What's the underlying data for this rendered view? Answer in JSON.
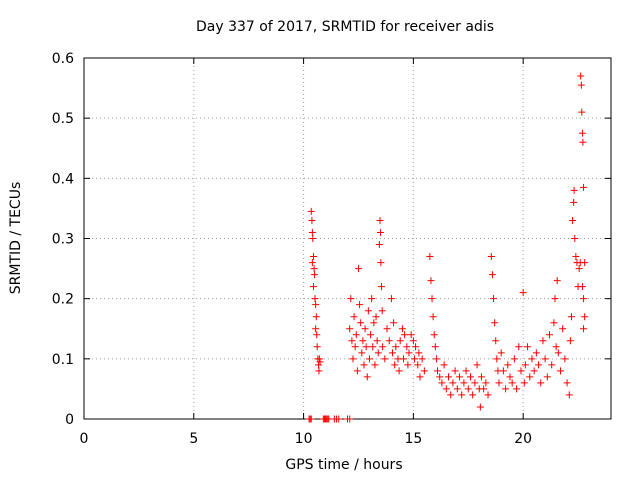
{
  "chart_data": {
    "type": "scatter",
    "title": "Day 337 of 2017, SRMTID for receiver adis",
    "xlabel": "GPS time / hours",
    "ylabel": "SRMTID / TECUs",
    "xlim": [
      0,
      24
    ],
    "ylim": [
      0,
      0.6
    ],
    "xticks": [
      0,
      5,
      10,
      15,
      20
    ],
    "xtick_labels": [
      "0",
      "5",
      "10",
      "15",
      "20"
    ],
    "yticks": [
      0,
      0.1,
      0.2,
      0.3,
      0.4,
      0.5,
      0.6
    ],
    "ytick_labels": [
      "0",
      "0.1",
      "0.2",
      "0.3",
      "0.4",
      "0.5",
      "0.6"
    ],
    "grid": true,
    "marker": "+",
    "color": "#ff0000",
    "series": [
      {
        "name": "SRMTID",
        "points": [
          [
            10.25,
            0.0
          ],
          [
            10.3,
            0.0
          ],
          [
            10.35,
            0.0
          ],
          [
            10.9,
            0.0
          ],
          [
            10.95,
            0.0
          ],
          [
            11.0,
            0.0
          ],
          [
            11.05,
            0.0
          ],
          [
            11.1,
            0.0
          ],
          [
            11.15,
            0.0
          ],
          [
            11.4,
            0.0
          ],
          [
            11.5,
            0.0
          ],
          [
            11.6,
            0.0
          ],
          [
            12.0,
            0.0
          ],
          [
            12.1,
            0.0
          ],
          [
            10.35,
            0.345
          ],
          [
            10.38,
            0.33
          ],
          [
            10.4,
            0.31
          ],
          [
            10.42,
            0.3
          ],
          [
            10.45,
            0.27
          ],
          [
            10.48,
            0.25
          ],
          [
            10.5,
            0.24
          ],
          [
            10.52,
            0.2
          ],
          [
            10.55,
            0.19
          ],
          [
            10.58,
            0.17
          ],
          [
            10.6,
            0.14
          ],
          [
            10.62,
            0.12
          ],
          [
            10.65,
            0.1
          ],
          [
            10.68,
            0.09
          ],
          [
            10.7,
            0.08
          ],
          [
            10.72,
            0.1
          ],
          [
            10.75,
            0.095
          ],
          [
            10.4,
            0.26
          ],
          [
            10.45,
            0.22
          ],
          [
            10.55,
            0.15
          ],
          [
            12.1,
            0.15
          ],
          [
            12.15,
            0.2
          ],
          [
            12.2,
            0.13
          ],
          [
            12.25,
            0.1
          ],
          [
            12.3,
            0.17
          ],
          [
            12.35,
            0.12
          ],
          [
            12.4,
            0.14
          ],
          [
            12.45,
            0.08
          ],
          [
            12.5,
            0.25
          ],
          [
            12.55,
            0.19
          ],
          [
            12.6,
            0.16
          ],
          [
            12.65,
            0.11
          ],
          [
            12.7,
            0.13
          ],
          [
            12.75,
            0.09
          ],
          [
            12.8,
            0.15
          ],
          [
            12.85,
            0.12
          ],
          [
            12.9,
            0.07
          ],
          [
            12.95,
            0.18
          ],
          [
            13.0,
            0.1
          ],
          [
            13.05,
            0.14
          ],
          [
            13.1,
            0.2
          ],
          [
            13.15,
            0.12
          ],
          [
            13.2,
            0.16
          ],
          [
            13.25,
            0.09
          ],
          [
            13.3,
            0.17
          ],
          [
            13.35,
            0.13
          ],
          [
            13.4,
            0.11
          ],
          [
            13.45,
            0.29
          ],
          [
            13.48,
            0.33
          ],
          [
            13.5,
            0.31
          ],
          [
            13.52,
            0.26
          ],
          [
            13.55,
            0.22
          ],
          [
            13.58,
            0.18
          ],
          [
            13.6,
            0.12
          ],
          [
            13.7,
            0.1
          ],
          [
            13.8,
            0.15
          ],
          [
            13.9,
            0.13
          ],
          [
            14.0,
            0.2
          ],
          [
            14.05,
            0.11
          ],
          [
            14.1,
            0.16
          ],
          [
            14.15,
            0.09
          ],
          [
            14.2,
            0.12
          ],
          [
            14.3,
            0.1
          ],
          [
            14.35,
            0.08
          ],
          [
            14.4,
            0.13
          ],
          [
            14.5,
            0.15
          ],
          [
            14.55,
            0.1
          ],
          [
            14.6,
            0.14
          ],
          [
            14.7,
            0.12
          ],
          [
            14.75,
            0.09
          ],
          [
            14.8,
            0.11
          ],
          [
            14.9,
            0.14
          ],
          [
            15.0,
            0.13
          ],
          [
            15.05,
            0.1
          ],
          [
            15.1,
            0.12
          ],
          [
            15.2,
            0.09
          ],
          [
            15.25,
            0.11
          ],
          [
            15.3,
            0.07
          ],
          [
            15.4,
            0.1
          ],
          [
            15.5,
            0.08
          ],
          [
            15.75,
            0.27
          ],
          [
            15.8,
            0.23
          ],
          [
            15.85,
            0.2
          ],
          [
            15.9,
            0.17
          ],
          [
            15.95,
            0.14
          ],
          [
            16.0,
            0.12
          ],
          [
            16.05,
            0.1
          ],
          [
            16.1,
            0.08
          ],
          [
            16.2,
            0.07
          ],
          [
            16.3,
            0.06
          ],
          [
            16.4,
            0.09
          ],
          [
            16.5,
            0.05
          ],
          [
            16.6,
            0.07
          ],
          [
            16.7,
            0.04
          ],
          [
            16.8,
            0.06
          ],
          [
            16.9,
            0.08
          ],
          [
            17.0,
            0.05
          ],
          [
            17.1,
            0.07
          ],
          [
            17.2,
            0.04
          ],
          [
            17.3,
            0.06
          ],
          [
            17.4,
            0.08
          ],
          [
            17.5,
            0.05
          ],
          [
            17.6,
            0.07
          ],
          [
            17.7,
            0.04
          ],
          [
            17.8,
            0.06
          ],
          [
            17.9,
            0.09
          ],
          [
            18.0,
            0.05
          ],
          [
            18.05,
            0.02
          ],
          [
            18.1,
            0.07
          ],
          [
            18.2,
            0.05
          ],
          [
            18.3,
            0.06
          ],
          [
            18.4,
            0.04
          ],
          [
            18.55,
            0.27
          ],
          [
            18.6,
            0.24
          ],
          [
            18.65,
            0.2
          ],
          [
            18.7,
            0.16
          ],
          [
            18.75,
            0.13
          ],
          [
            18.8,
            0.1
          ],
          [
            18.85,
            0.08
          ],
          [
            18.9,
            0.06
          ],
          [
            19.0,
            0.11
          ],
          [
            19.1,
            0.08
          ],
          [
            19.2,
            0.05
          ],
          [
            19.3,
            0.09
          ],
          [
            19.4,
            0.07
          ],
          [
            19.5,
            0.06
          ],
          [
            19.6,
            0.1
          ],
          [
            19.7,
            0.05
          ],
          [
            19.8,
            0.12
          ],
          [
            19.9,
            0.08
          ],
          [
            20.0,
            0.21
          ],
          [
            20.05,
            0.06
          ],
          [
            20.1,
            0.09
          ],
          [
            20.2,
            0.12
          ],
          [
            20.3,
            0.07
          ],
          [
            20.4,
            0.1
          ],
          [
            20.5,
            0.08
          ],
          [
            20.6,
            0.11
          ],
          [
            20.7,
            0.09
          ],
          [
            20.8,
            0.06
          ],
          [
            20.9,
            0.13
          ],
          [
            21.0,
            0.1
          ],
          [
            21.1,
            0.07
          ],
          [
            21.2,
            0.14
          ],
          [
            21.3,
            0.09
          ],
          [
            21.4,
            0.16
          ],
          [
            21.45,
            0.2
          ],
          [
            21.5,
            0.12
          ],
          [
            21.55,
            0.23
          ],
          [
            21.6,
            0.11
          ],
          [
            21.7,
            0.08
          ],
          [
            21.8,
            0.15
          ],
          [
            21.9,
            0.1
          ],
          [
            22.0,
            0.06
          ],
          [
            22.1,
            0.04
          ],
          [
            22.15,
            0.13
          ],
          [
            22.2,
            0.17
          ],
          [
            22.25,
            0.33
          ],
          [
            22.3,
            0.36
          ],
          [
            22.32,
            0.38
          ],
          [
            22.35,
            0.3
          ],
          [
            22.4,
            0.27
          ],
          [
            22.45,
            0.26
          ],
          [
            22.5,
            0.22
          ],
          [
            22.55,
            0.25
          ],
          [
            22.6,
            0.26
          ],
          [
            22.62,
            0.57
          ],
          [
            22.65,
            0.555
          ],
          [
            22.67,
            0.51
          ],
          [
            22.7,
            0.475
          ],
          [
            22.72,
            0.46
          ],
          [
            22.75,
            0.385
          ],
          [
            22.7,
            0.22
          ],
          [
            22.75,
            0.2
          ],
          [
            22.8,
            0.17
          ],
          [
            22.75,
            0.15
          ],
          [
            22.8,
            0.26
          ]
        ]
      }
    ]
  }
}
